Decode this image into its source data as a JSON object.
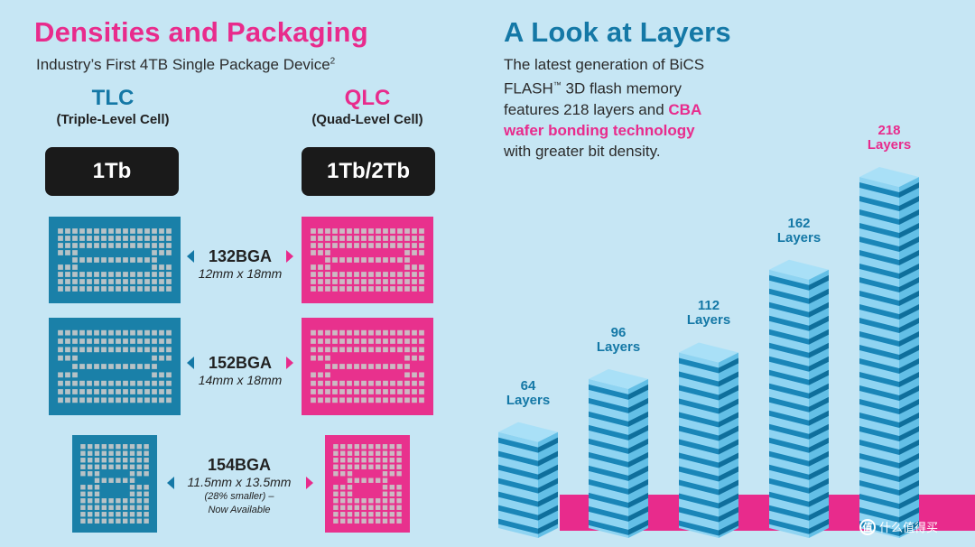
{
  "left": {
    "title": "Densities and Packaging",
    "subtitle": "Industry’s First 4TB Single Package Device",
    "subtitle_sup": "2",
    "tlc": {
      "label": "TLC",
      "desc": "(Triple-Level Cell)",
      "capacity": "1Tb"
    },
    "qlc": {
      "label": "QLC",
      "desc": "(Quad-Level Cell)",
      "capacity": "1Tb/2Tb"
    },
    "packages": [
      {
        "name": "132BGA",
        "dims": "12mm x 18mm"
      },
      {
        "name": "152BGA",
        "dims": "14mm x 18mm"
      },
      {
        "name": "154BGA",
        "dims": "11.5mm x 13.5mm",
        "note1": "(28% smaller) –",
        "note2": "Now Available"
      }
    ]
  },
  "right": {
    "title": "A Look at Layers",
    "desc_line1": "The latest generation of BiCS",
    "desc_line2a": "FLASH",
    "desc_tm": "™",
    "desc_line2b": " 3D flash memory",
    "desc_line3a": "features 218 layers and ",
    "desc_line3b": "CBA",
    "desc_line4": "wafer bonding technology",
    "desc_line5": "with greater bit density."
  },
  "chart_data": {
    "type": "bar",
    "categories": [
      "64",
      "96",
      "112",
      "162",
      "218"
    ],
    "values": [
      64,
      96,
      112,
      162,
      218
    ],
    "unit_label": "Layers",
    "title": "A Look at Layers",
    "xlabel": "",
    "ylabel": "",
    "ylim": [
      0,
      218
    ],
    "grid": false,
    "colors": {
      "blue": "#1478a6",
      "pink": "#e82b8c",
      "bar_light": "#8fd4f2",
      "bar_dark": "#1a86b8",
      "bar_top": "#a9e0f7"
    }
  },
  "watermark": {
    "icon": "值",
    "text": "什么值得买"
  },
  "colors": {
    "background": "#c6e6f4",
    "pink": "#e82b8c",
    "blue": "#1478a6",
    "dark": "#1a1a1a"
  }
}
